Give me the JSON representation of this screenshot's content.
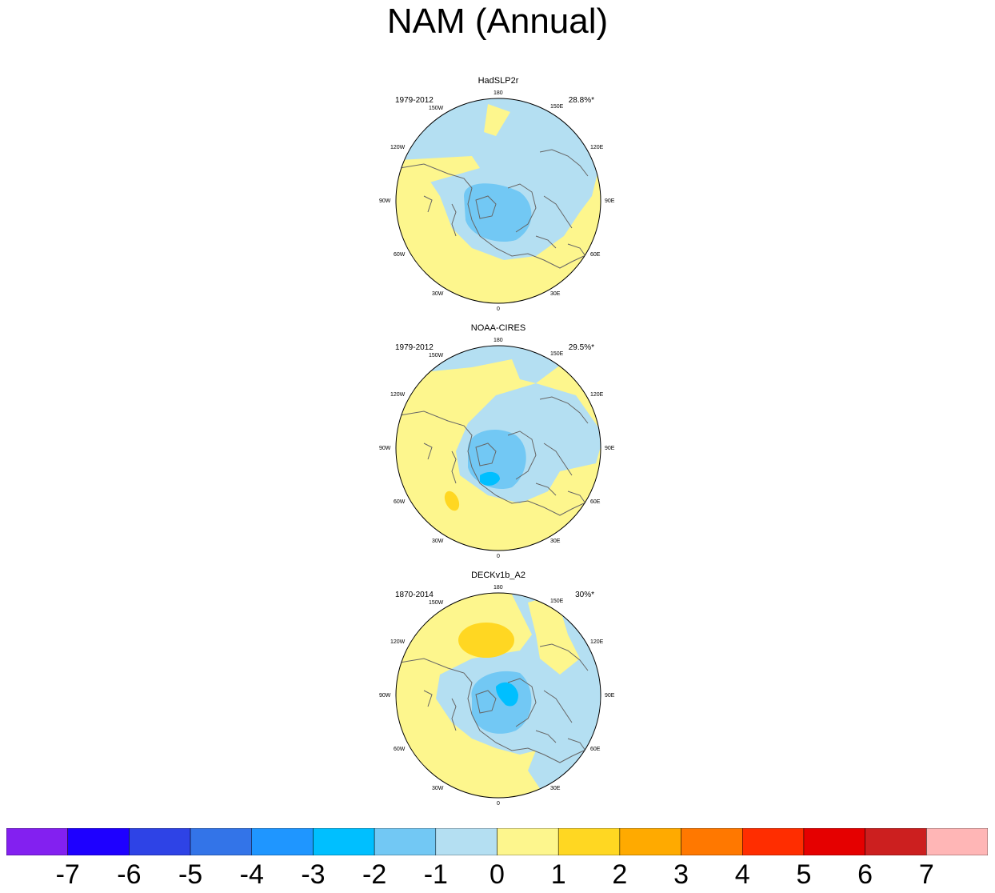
{
  "title": "NAM (Annual)",
  "chart_data": {
    "type": "polar-map",
    "projection": "north polar stereographic",
    "title": "NAM (Annual)",
    "panels": [
      {
        "dataset": "HadSLP2r",
        "period": "1979-2012",
        "variance": "28.8%*",
        "min_level": -2,
        "max_level": 0
      },
      {
        "dataset": "NOAA-CIRES",
        "period": "1979-2012",
        "variance": "29.5%*",
        "min_level": -3,
        "max_level": 1
      },
      {
        "dataset": "DECKv1b_A2",
        "period": "1870-2014",
        "variance": "30%*",
        "min_level": -3,
        "max_level": 1
      }
    ],
    "longitude_labels": [
      "180",
      "150E",
      "120E",
      "90E",
      "60E",
      "30E",
      "0",
      "30W",
      "60W",
      "90W",
      "120W",
      "150W"
    ],
    "colorbar": {
      "levels": [
        "-7",
        "-6",
        "-5",
        "-4",
        "-3",
        "-2",
        "-1",
        "0",
        "1",
        "2",
        "3",
        "4",
        "5",
        "6",
        "7"
      ],
      "colors": [
        "#8320f0",
        "#1e00ff",
        "#2e43e6",
        "#3374e8",
        "#1f96ff",
        "#00bfff",
        "#72c8f4",
        "#b4dff2",
        "#fdf68d",
        "#ffd722",
        "#ffaa00",
        "#ff7800",
        "#ff2d00",
        "#e50000",
        "#cc1f1f",
        "#ffb6b6"
      ]
    }
  },
  "colors": {
    "ocean_neg": "#b4dff2",
    "land_pos": "#fdf68d",
    "coast": "#666666"
  }
}
